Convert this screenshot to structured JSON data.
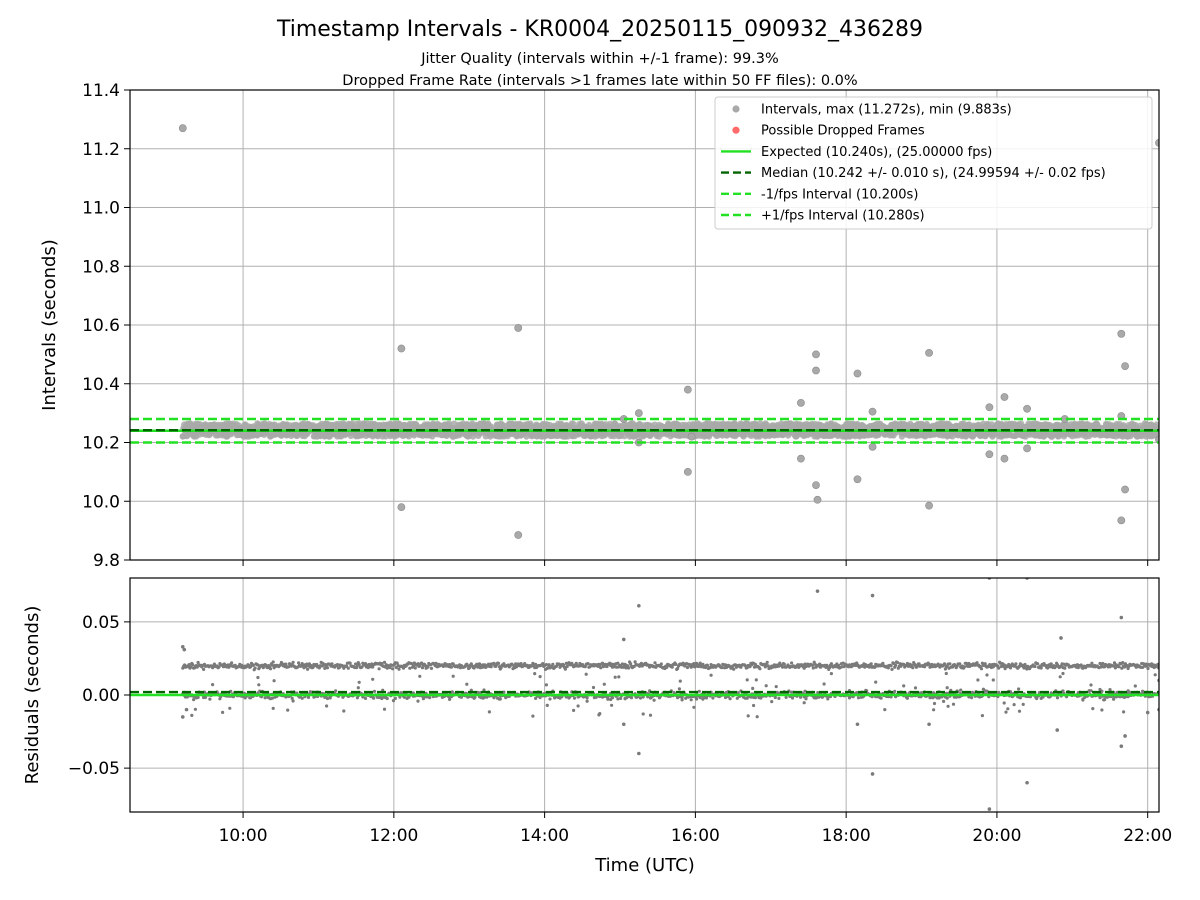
{
  "chart_data": {
    "title": "Timestamp Intervals - KR0004_20250115_090932_436289",
    "subtitle_lines": [
      "Jitter Quality (intervals within +/-1 frame): 99.3%",
      "Dropped Frame Rate (intervals >1 frames late within 50 FF files): 0.0%"
    ],
    "top_panel": {
      "type": "scatter",
      "ylabel": "Intervals (seconds)",
      "ylim": [
        9.8,
        11.4
      ],
      "yticks": [
        9.8,
        10.0,
        10.2,
        10.4,
        10.6,
        10.8,
        11.0,
        11.2,
        11.4
      ],
      "ytick_labels": [
        "9.8",
        "10.0",
        "10.2",
        "10.4",
        "10.6",
        "10.8",
        "11.0",
        "11.2",
        "11.4"
      ],
      "grid": true,
      "legend_position": "top-right",
      "legend": [
        {
          "label": "Intervals, max (11.272s), min (9.883s)",
          "kind": "dot",
          "color": "#a9a9a9"
        },
        {
          "label": "Possible Dropped Frames",
          "kind": "dot",
          "color": "#ff6b6b"
        },
        {
          "label": "Expected (10.240s), (25.00000 fps)",
          "kind": "line",
          "color": "#22e022"
        },
        {
          "label": "Median (10.242 +/- 0.010 s), (24.99594 +/- 0.02 fps)",
          "kind": "dash",
          "color": "#006400"
        },
        {
          "label": "-1/fps Interval (10.200s)",
          "kind": "dash",
          "color": "#22e022"
        },
        {
          "label": "+1/fps Interval (10.280s)",
          "kind": "dash",
          "color": "#22e022"
        }
      ],
      "reference_lines": [
        {
          "name": "expected",
          "y": 10.24,
          "style": "solid",
          "color": "#22e022"
        },
        {
          "name": "median",
          "y": 10.242,
          "style": "dashed",
          "color": "#006400"
        },
        {
          "name": "minus-one-fps",
          "y": 10.2,
          "style": "dashed",
          "color": "#22e022"
        },
        {
          "name": "plus-one-fps",
          "y": 10.28,
          "style": "dashed",
          "color": "#22e022"
        }
      ],
      "band": {
        "x_start": 9.2,
        "x_end": 22.15,
        "y_low": 10.22,
        "y_high": 10.265
      },
      "outliers": [
        [
          9.2,
          11.27
        ],
        [
          12.1,
          10.52
        ],
        [
          12.1,
          9.98
        ],
        [
          13.65,
          10.59
        ],
        [
          13.65,
          9.885
        ],
        [
          15.25,
          10.3
        ],
        [
          15.25,
          10.2
        ],
        [
          15.05,
          10.28
        ],
        [
          15.9,
          10.38
        ],
        [
          15.9,
          10.1
        ],
        [
          15.95,
          10.22
        ],
        [
          17.4,
          10.335
        ],
        [
          17.4,
          10.145
        ],
        [
          17.6,
          10.5
        ],
        [
          17.6,
          10.445
        ],
        [
          17.6,
          10.055
        ],
        [
          17.62,
          10.005
        ],
        [
          18.15,
          10.435
        ],
        [
          18.15,
          10.075
        ],
        [
          18.35,
          10.305
        ],
        [
          18.35,
          10.185
        ],
        [
          19.1,
          10.505
        ],
        [
          19.1,
          9.985
        ],
        [
          19.9,
          10.32
        ],
        [
          19.9,
          10.16
        ],
        [
          20.1,
          10.355
        ],
        [
          20.1,
          10.145
        ],
        [
          20.4,
          10.315
        ],
        [
          20.4,
          10.18
        ],
        [
          20.9,
          10.28
        ],
        [
          21.65,
          10.57
        ],
        [
          21.65,
          10.29
        ],
        [
          21.65,
          9.935
        ],
        [
          21.7,
          10.46
        ],
        [
          21.7,
          10.04
        ],
        [
          22.15,
          11.22
        ],
        [
          22.15,
          10.21
        ]
      ]
    },
    "bottom_panel": {
      "type": "scatter",
      "ylabel": "Residuals (seconds)",
      "ylim": [
        -0.08,
        0.08
      ],
      "yticks": [
        -0.05,
        0.0,
        0.05
      ],
      "ytick_labels": [
        "−0.05",
        "0.00",
        "0.05"
      ],
      "grid": true,
      "reference_lines": [
        {
          "name": "zero",
          "y": 0.0,
          "style": "solid",
          "color": "#22e022"
        },
        {
          "name": "median-offset",
          "y": 0.002,
          "style": "dashed",
          "color": "#006400"
        }
      ],
      "clusters": [
        {
          "center": 0.02,
          "spread": 0.0025
        },
        {
          "center": 0.0,
          "spread": 0.003
        }
      ],
      "x_range_points": [
        9.2,
        22.15
      ],
      "outliers": [
        [
          9.2,
          0.033
        ],
        [
          9.22,
          0.031
        ],
        [
          9.2,
          -0.015
        ],
        [
          9.25,
          -0.01
        ],
        [
          15.25,
          0.061
        ],
        [
          15.05,
          0.038
        ],
        [
          15.05,
          -0.02
        ],
        [
          15.25,
          -0.04
        ],
        [
          17.62,
          0.071
        ],
        [
          18.35,
          0.068
        ],
        [
          18.35,
          -0.054
        ],
        [
          18.15,
          -0.02
        ],
        [
          19.1,
          -0.02
        ],
        [
          19.9,
          0.08
        ],
        [
          20.4,
          0.08
        ],
        [
          19.9,
          -0.078
        ],
        [
          20.4,
          -0.06
        ],
        [
          20.85,
          0.039
        ],
        [
          20.8,
          -0.024
        ],
        [
          21.65,
          0.053
        ],
        [
          21.65,
          -0.035
        ],
        [
          21.7,
          -0.028
        ],
        [
          22.0,
          -0.012
        ],
        [
          22.15,
          -0.01
        ],
        [
          22.15,
          0.01
        ]
      ]
    },
    "x_axis": {
      "xlabel": "Time (UTC)",
      "xlim": [
        8.5,
        22.15
      ],
      "xticks": [
        10,
        12,
        14,
        16,
        18,
        20,
        22
      ],
      "xtick_labels": [
        "10:00",
        "12:00",
        "14:00",
        "16:00",
        "18:00",
        "20:00",
        "22:00"
      ]
    }
  }
}
